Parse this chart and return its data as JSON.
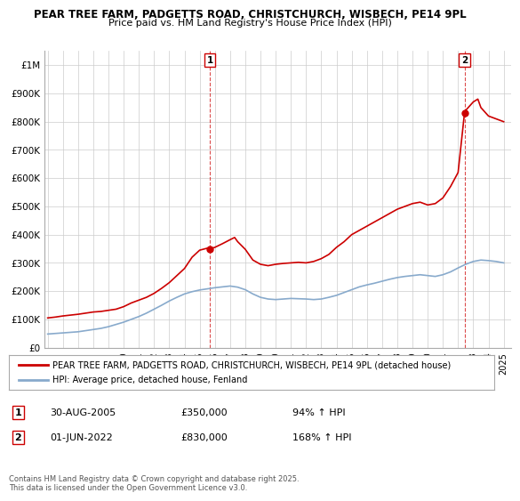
{
  "title1": "PEAR TREE FARM, PADGETTS ROAD, CHRISTCHURCH, WISBECH, PE14 9PL",
  "title2": "Price paid vs. HM Land Registry's House Price Index (HPI)",
  "ylabel_ticks": [
    "£0",
    "£100K",
    "£200K",
    "£300K",
    "£400K",
    "£500K",
    "£600K",
    "£700K",
    "£800K",
    "£900K",
    "£1M"
  ],
  "ytick_values": [
    0,
    100000,
    200000,
    300000,
    400000,
    500000,
    600000,
    700000,
    800000,
    900000,
    1000000
  ],
  "ylim": [
    0,
    1050000
  ],
  "xlim_start": 1994.8,
  "xlim_end": 2025.5,
  "xtick_years": [
    1995,
    1996,
    1997,
    1998,
    1999,
    2000,
    2001,
    2002,
    2003,
    2004,
    2005,
    2006,
    2007,
    2008,
    2009,
    2010,
    2011,
    2012,
    2013,
    2014,
    2015,
    2016,
    2017,
    2018,
    2019,
    2020,
    2021,
    2022,
    2023,
    2024,
    2025
  ],
  "red_line_color": "#cc0000",
  "blue_line_color": "#88aacc",
  "marker1_x": 2005.67,
  "marker1_y": 350000,
  "marker2_x": 2022.42,
  "marker2_y": 830000,
  "legend_line1": "PEAR TREE FARM, PADGETTS ROAD, CHRISTCHURCH, WISBECH, PE14 9PL (detached house)",
  "legend_line2": "HPI: Average price, detached house, Fenland",
  "annotation1_label": "1",
  "annotation1_date": "30-AUG-2005",
  "annotation1_price": "£350,000",
  "annotation1_hpi": "94% ↑ HPI",
  "annotation2_label": "2",
  "annotation2_date": "01-JUN-2022",
  "annotation2_price": "£830,000",
  "annotation2_hpi": "168% ↑ HPI",
  "footer": "Contains HM Land Registry data © Crown copyright and database right 2025.\nThis data is licensed under the Open Government Licence v3.0.",
  "background_color": "#ffffff",
  "grid_color": "#cccccc",
  "red_years": [
    1995.0,
    1995.5,
    1996.0,
    1996.5,
    1997.0,
    1997.5,
    1998.0,
    1998.5,
    1999.0,
    1999.5,
    2000.0,
    2000.5,
    2001.0,
    2001.5,
    2002.0,
    2002.5,
    2003.0,
    2003.5,
    2004.0,
    2004.5,
    2005.0,
    2005.5,
    2005.67,
    2006.0,
    2006.5,
    2007.0,
    2007.3,
    2007.5,
    2008.0,
    2008.5,
    2009.0,
    2009.5,
    2010.0,
    2010.5,
    2011.0,
    2011.5,
    2012.0,
    2012.5,
    2013.0,
    2013.5,
    2014.0,
    2014.5,
    2015.0,
    2015.5,
    2016.0,
    2016.5,
    2017.0,
    2017.5,
    2018.0,
    2018.5,
    2019.0,
    2019.5,
    2020.0,
    2020.5,
    2021.0,
    2021.5,
    2022.0,
    2022.42,
    2022.5,
    2023.0,
    2023.3,
    2023.5,
    2024.0,
    2024.5,
    2025.0
  ],
  "red_values": [
    105000,
    108000,
    112000,
    115000,
    118000,
    122000,
    126000,
    128000,
    132000,
    136000,
    145000,
    158000,
    168000,
    178000,
    192000,
    210000,
    230000,
    255000,
    280000,
    320000,
    345000,
    352000,
    350000,
    355000,
    368000,
    382000,
    390000,
    375000,
    348000,
    310000,
    295000,
    290000,
    295000,
    298000,
    300000,
    302000,
    300000,
    305000,
    315000,
    330000,
    355000,
    375000,
    400000,
    415000,
    430000,
    445000,
    460000,
    475000,
    490000,
    500000,
    510000,
    515000,
    505000,
    510000,
    530000,
    570000,
    620000,
    830000,
    840000,
    870000,
    880000,
    850000,
    820000,
    810000,
    800000
  ],
  "blue_years": [
    1995.0,
    1995.5,
    1996.0,
    1996.5,
    1997.0,
    1997.5,
    1998.0,
    1998.5,
    1999.0,
    1999.5,
    2000.0,
    2000.5,
    2001.0,
    2001.5,
    2002.0,
    2002.5,
    2003.0,
    2003.5,
    2004.0,
    2004.5,
    2005.0,
    2005.5,
    2006.0,
    2006.5,
    2007.0,
    2007.5,
    2008.0,
    2008.5,
    2009.0,
    2009.5,
    2010.0,
    2010.5,
    2011.0,
    2011.5,
    2012.0,
    2012.5,
    2013.0,
    2013.5,
    2014.0,
    2014.5,
    2015.0,
    2015.5,
    2016.0,
    2016.5,
    2017.0,
    2017.5,
    2018.0,
    2018.5,
    2019.0,
    2019.5,
    2020.0,
    2020.5,
    2021.0,
    2021.5,
    2022.0,
    2022.5,
    2023.0,
    2023.5,
    2024.0,
    2024.5,
    2025.0
  ],
  "blue_values": [
    48000,
    50000,
    52000,
    54000,
    56000,
    60000,
    64000,
    68000,
    74000,
    82000,
    90000,
    100000,
    110000,
    122000,
    136000,
    150000,
    165000,
    178000,
    190000,
    198000,
    204000,
    208000,
    212000,
    215000,
    218000,
    214000,
    205000,
    190000,
    178000,
    172000,
    170000,
    172000,
    174000,
    173000,
    172000,
    170000,
    172000,
    178000,
    185000,
    195000,
    205000,
    215000,
    222000,
    228000,
    235000,
    242000,
    248000,
    252000,
    255000,
    258000,
    255000,
    252000,
    258000,
    268000,
    282000,
    295000,
    305000,
    310000,
    308000,
    305000,
    300000
  ]
}
